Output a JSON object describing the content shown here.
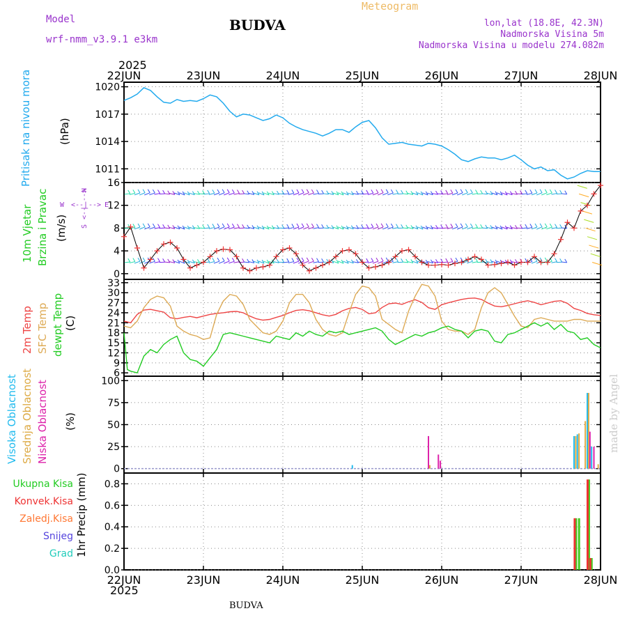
{
  "header": {
    "model_label": "Model",
    "model_name": "wrf-nmm_v3.9.1  e3km",
    "title": "BUDVA",
    "chart_kind": "Meteogram",
    "coords": "lon,lat (18.8E, 42.3N)",
    "elevation": "Nadmorska Visina 5m",
    "model_elevation": "Nadmorska Visina u modelu 274.082m",
    "year_top": "2025",
    "year_bottom": "2025",
    "footer_title": "BUDVA",
    "credit": "made by Angel"
  },
  "colors": {
    "pressure": "#22aaee",
    "temp2m": "#ee4444",
    "sfctemp": "#ddaa55",
    "dewpt": "#22cc22",
    "high_cloud": "#22bbee",
    "mid_cloud": "#ddaa44",
    "low_cloud": "#dd22aa",
    "wind_speed": "#ee3333",
    "wind_label": "#22cc22",
    "total_precip": "#44cc22",
    "conv_precip": "#ee3333",
    "frozen_precip": "#ff7733",
    "snow": "#5544dd",
    "hail": "#22ccbb",
    "purple": "#9933cc"
  },
  "chart_data": [
    {
      "type": "line",
      "panel": "pressure",
      "title": "Pritisak na nivou mora",
      "ylabel": "(hPa)",
      "ylim": [
        1009.5,
        1020.5
      ],
      "yticks": [
        1011,
        1014,
        1017,
        1020
      ],
      "x": [
        0,
        2,
        4,
        6,
        8,
        10,
        12,
        14,
        16,
        18,
        20,
        22,
        24,
        26,
        28,
        30,
        32,
        34,
        36,
        38,
        40,
        42,
        44,
        46,
        48,
        50,
        52,
        54,
        56,
        58,
        60,
        62,
        64,
        66,
        68,
        70,
        72,
        74,
        76,
        78,
        80,
        82,
        84,
        86,
        88,
        90,
        92,
        94,
        96,
        98,
        100,
        102,
        104,
        106,
        108,
        110,
        112,
        114,
        116,
        118,
        120,
        122,
        124,
        126,
        128,
        130,
        132,
        134,
        136,
        138,
        140,
        142,
        144
      ],
      "values": [
        1018.5,
        1018.8,
        1019.2,
        1019.9,
        1019.6,
        1018.9,
        1018.3,
        1018.2,
        1018.6,
        1018.4,
        1018.5,
        1018.4,
        1018.7,
        1019.1,
        1018.9,
        1018.2,
        1017.3,
        1016.7,
        1017.0,
        1016.9,
        1016.6,
        1016.3,
        1016.5,
        1016.9,
        1016.6,
        1016.0,
        1015.6,
        1015.3,
        1015.1,
        1014.9,
        1014.6,
        1014.9,
        1015.3,
        1015.3,
        1015.0,
        1015.6,
        1016.1,
        1016.3,
        1015.5,
        1014.4,
        1013.7,
        1013.8,
        1013.9,
        1013.7,
        1013.6,
        1013.5,
        1013.8,
        1013.7,
        1013.5,
        1013.1,
        1012.6,
        1012.0,
        1011.8,
        1012.1,
        1012.3,
        1012.2,
        1012.2,
        1012.0,
        1012.2,
        1012.5,
        1012.0,
        1011.4,
        1011.0,
        1011.2,
        1010.8,
        1010.9,
        1010.3,
        1009.9,
        1010.1,
        1010.5,
        1010.8,
        1010.7,
        1010.7
      ]
    },
    {
      "type": "line",
      "panel": "wind",
      "title": "10m Vjetar",
      "title2": "Brzina i Pravac",
      "ylabel": "(m/s)",
      "ylim": [
        -1,
        16
      ],
      "yticks": [
        0,
        4,
        8,
        12,
        16
      ],
      "compass": [
        "W",
        "<--",
        "|",
        "-->",
        "E",
        "S",
        "<--",
        "|",
        "-->",
        "N"
      ],
      "x": [
        0,
        2,
        4,
        6,
        8,
        10,
        12,
        14,
        16,
        18,
        20,
        22,
        24,
        26,
        28,
        30,
        32,
        34,
        36,
        38,
        40,
        42,
        44,
        46,
        48,
        50,
        52,
        54,
        56,
        58,
        60,
        62,
        64,
        66,
        68,
        70,
        72,
        74,
        76,
        78,
        80,
        82,
        84,
        86,
        88,
        90,
        92,
        94,
        96,
        98,
        100,
        102,
        104,
        106,
        108,
        110,
        112,
        114,
        116,
        118,
        120,
        122,
        124,
        126,
        128,
        130,
        132,
        134,
        136,
        138,
        140,
        142,
        144
      ],
      "values": [
        6.5,
        8.2,
        4.5,
        1.0,
        2.5,
        4.0,
        5.2,
        5.5,
        4.5,
        2.5,
        1.0,
        1.5,
        2.0,
        3.0,
        4.0,
        4.3,
        4.2,
        3.0,
        1.0,
        0.5,
        1.0,
        1.2,
        1.5,
        3.0,
        4.2,
        4.5,
        3.5,
        1.5,
        0.5,
        1.0,
        1.5,
        2.0,
        3.0,
        4.0,
        4.2,
        3.5,
        2.0,
        1.0,
        1.2,
        1.5,
        2.0,
        3.0,
        4.0,
        4.2,
        3.0,
        2.0,
        1.5,
        1.5,
        1.6,
        1.5,
        1.8,
        2.0,
        2.5,
        3.0,
        2.5,
        1.5,
        1.6,
        1.8,
        2.0,
        1.5,
        2.0,
        2.0,
        3.0,
        2.0,
        2.0,
        3.5,
        6.0,
        9.0,
        8.0,
        11.0,
        12.0,
        14.0,
        15.5
      ],
      "barb_rows": [
        2,
        8,
        14
      ]
    },
    {
      "type": "line",
      "panel": "temperature",
      "ylabel": "(C)",
      "legend": [
        "2m Temp",
        "SFC Temp",
        "dewpt Temp"
      ],
      "ylim": [
        5,
        34
      ],
      "yticks": [
        6,
        9,
        12,
        15,
        18,
        21,
        24,
        27,
        30,
        33
      ],
      "series": [
        {
          "name": "2m Temp",
          "x": [
            0,
            2,
            4,
            6,
            8,
            10,
            12,
            14,
            16,
            18,
            20,
            22,
            24,
            26,
            28,
            30,
            32,
            34,
            36,
            38,
            40,
            42,
            44,
            46,
            48,
            50,
            52,
            54,
            56,
            58,
            60,
            62,
            64,
            66,
            68,
            70,
            72,
            74,
            76,
            78,
            80,
            82,
            84,
            86,
            88,
            90,
            92,
            94,
            96,
            98,
            100,
            102,
            104,
            106,
            108,
            110,
            112,
            114,
            116,
            118,
            120,
            122,
            124,
            126,
            128,
            130,
            132,
            134,
            136,
            138,
            140,
            142,
            144
          ],
          "values": [
            21.5,
            21.0,
            23.5,
            24.8,
            25.0,
            24.6,
            24.2,
            22.5,
            22.2,
            22.6,
            22.9,
            22.5,
            23.0,
            23.5,
            23.8,
            24.0,
            24.3,
            24.4,
            24.0,
            23.0,
            22.2,
            21.8,
            22.0,
            22.6,
            23.2,
            24.0,
            24.7,
            24.9,
            24.6,
            24.0,
            23.4,
            23.0,
            23.5,
            24.6,
            25.3,
            25.6,
            25.0,
            23.7,
            24.0,
            25.6,
            26.7,
            26.9,
            26.5,
            27.3,
            27.9,
            27.1,
            25.5,
            25.0,
            26.4,
            27.0,
            27.5,
            28.0,
            28.3,
            28.4,
            28.0,
            26.9,
            26.0,
            25.8,
            26.2,
            26.7,
            27.2,
            27.6,
            27.1,
            26.4,
            26.9,
            27.4,
            27.6,
            26.8,
            25.3,
            24.7,
            23.8,
            23.4,
            23.2
          ]
        },
        {
          "name": "SFC Temp",
          "x": [
            0,
            2,
            4,
            6,
            8,
            10,
            12,
            14,
            16,
            18,
            20,
            22,
            24,
            26,
            28,
            30,
            32,
            34,
            36,
            38,
            40,
            42,
            44,
            46,
            48,
            50,
            52,
            54,
            56,
            58,
            60,
            62,
            64,
            66,
            68,
            70,
            72,
            74,
            76,
            78,
            80,
            82,
            84,
            86,
            88,
            90,
            92,
            94,
            96,
            98,
            100,
            102,
            104,
            106,
            108,
            110,
            112,
            114,
            116,
            118,
            120,
            122,
            124,
            126,
            128,
            130,
            132,
            134,
            136,
            138,
            140,
            142,
            144
          ],
          "values": [
            20.0,
            19.5,
            21.5,
            25.5,
            28.0,
            29.0,
            28.5,
            26.0,
            20.0,
            18.5,
            17.5,
            17.0,
            16.0,
            16.5,
            23.5,
            27.5,
            29.5,
            29.0,
            26.5,
            22.0,
            20.0,
            18.0,
            17.5,
            18.5,
            21.5,
            27.0,
            29.5,
            29.5,
            27.0,
            22.0,
            19.0,
            17.5,
            17.0,
            18.0,
            24.0,
            29.5,
            32.0,
            31.5,
            29.0,
            22.0,
            20.5,
            19.0,
            18.0,
            24.5,
            29.0,
            32.5,
            32.0,
            29.0,
            21.5,
            19.0,
            18.5,
            18.5,
            17.5,
            19.0,
            25.5,
            30.0,
            31.5,
            30.0,
            26.5,
            23.0,
            20.0,
            19.5,
            22.0,
            22.5,
            22.0,
            21.5,
            21.5,
            21.5,
            22.0,
            22.0,
            21.5,
            21.5,
            21.5
          ]
        },
        {
          "name": "dewpt Temp",
          "x": [
            0,
            1,
            2,
            4,
            6,
            8,
            10,
            12,
            14,
            16,
            18,
            20,
            22,
            24,
            26,
            28,
            30,
            32,
            34,
            36,
            38,
            40,
            42,
            44,
            46,
            48,
            50,
            52,
            54,
            56,
            58,
            60,
            62,
            64,
            66,
            68,
            70,
            72,
            74,
            76,
            78,
            80,
            82,
            84,
            86,
            88,
            90,
            92,
            94,
            96,
            98,
            100,
            102,
            104,
            106,
            108,
            110,
            112,
            114,
            116,
            118,
            120,
            122,
            124,
            126,
            128,
            130,
            132,
            134,
            136,
            138,
            140,
            142,
            144
          ],
          "values": [
            18.0,
            7.0,
            6.5,
            6.0,
            11.0,
            13.0,
            12.0,
            14.5,
            16.0,
            17.0,
            12.0,
            10.0,
            9.5,
            8.0,
            10.5,
            13.0,
            17.5,
            18.0,
            17.5,
            17.0,
            16.5,
            16.0,
            15.5,
            15.0,
            17.0,
            16.5,
            16.0,
            18.0,
            17.0,
            18.5,
            17.5,
            17.0,
            18.5,
            18.0,
            18.5,
            17.5,
            18.0,
            18.5,
            19.0,
            19.5,
            18.5,
            16.0,
            14.5,
            15.5,
            16.5,
            17.5,
            17.0,
            18.0,
            18.5,
            19.5,
            20.0,
            19.0,
            18.5,
            16.5,
            18.5,
            19.0,
            18.5,
            15.5,
            15.0,
            17.5,
            18.0,
            19.0,
            20.0,
            21.0,
            20.0,
            21.0,
            19.0,
            20.5,
            18.5,
            18.0,
            16.0,
            16.5,
            14.5,
            13.5
          ]
        }
      ]
    },
    {
      "type": "bar",
      "panel": "clouds",
      "ylabel": "(%)",
      "legend": [
        "Visoka Oblacnost",
        "Srednja Oblacnost",
        "Niska Oblacnost"
      ],
      "ylim": [
        -5,
        105
      ],
      "yticks": [
        0,
        25,
        50,
        75,
        100
      ],
      "bars": [
        {
          "x": 69,
          "value": 4,
          "series": "high"
        },
        {
          "x": 92,
          "value": 37,
          "series": "low"
        },
        {
          "x": 92.4,
          "value": 4,
          "series": "mid"
        },
        {
          "x": 95,
          "value": 16,
          "series": "low"
        },
        {
          "x": 95.6,
          "value": 9,
          "series": "low"
        },
        {
          "x": 136,
          "value": 37,
          "series": "high"
        },
        {
          "x": 136.5,
          "value": 37,
          "series": "mid"
        },
        {
          "x": 137,
          "value": 39,
          "series": "high"
        },
        {
          "x": 137.5,
          "value": 40,
          "series": "mid"
        },
        {
          "x": 139.4,
          "value": 54,
          "series": "mid"
        },
        {
          "x": 140,
          "value": 86,
          "series": "high"
        },
        {
          "x": 140.4,
          "value": 86,
          "series": "mid"
        },
        {
          "x": 140.8,
          "value": 42,
          "series": "low"
        },
        {
          "x": 141.3,
          "value": 25,
          "series": "high"
        },
        {
          "x": 142,
          "value": 25,
          "series": "low"
        },
        {
          "x": 143.3,
          "value": 5,
          "series": "mid"
        }
      ]
    },
    {
      "type": "bar",
      "panel": "precip",
      "ylabel": "1hr Precip (mm)",
      "legend": [
        "Ukupna  Kisa",
        "Konvek.Kisa",
        "Zaledj.Kisa",
        "Snijeg",
        "Grad"
      ],
      "ylim": [
        0,
        0.9
      ],
      "yticks": [
        0,
        0.2,
        0.4,
        0.6,
        0.8
      ],
      "bars": [
        {
          "x": 136.3,
          "total": 0.48,
          "conv": 0.48
        },
        {
          "x": 137.2,
          "total": 0.48,
          "conv": 0.0
        },
        {
          "x": 140.2,
          "total": 0.84,
          "conv": 0.84
        },
        {
          "x": 141.0,
          "total": 0.11,
          "conv": 0.11
        }
      ]
    }
  ],
  "x_axis": {
    "range_hours": [
      0,
      144
    ],
    "ticks": [
      {
        "h": 0,
        "label": "22JUN"
      },
      {
        "h": 24,
        "label": "23JUN"
      },
      {
        "h": 48,
        "label": "24JUN"
      },
      {
        "h": 72,
        "label": "25JUN"
      },
      {
        "h": 96,
        "label": "26JUN"
      },
      {
        "h": 120,
        "label": "27JUN"
      },
      {
        "h": 144,
        "label": "28JUN"
      }
    ]
  }
}
